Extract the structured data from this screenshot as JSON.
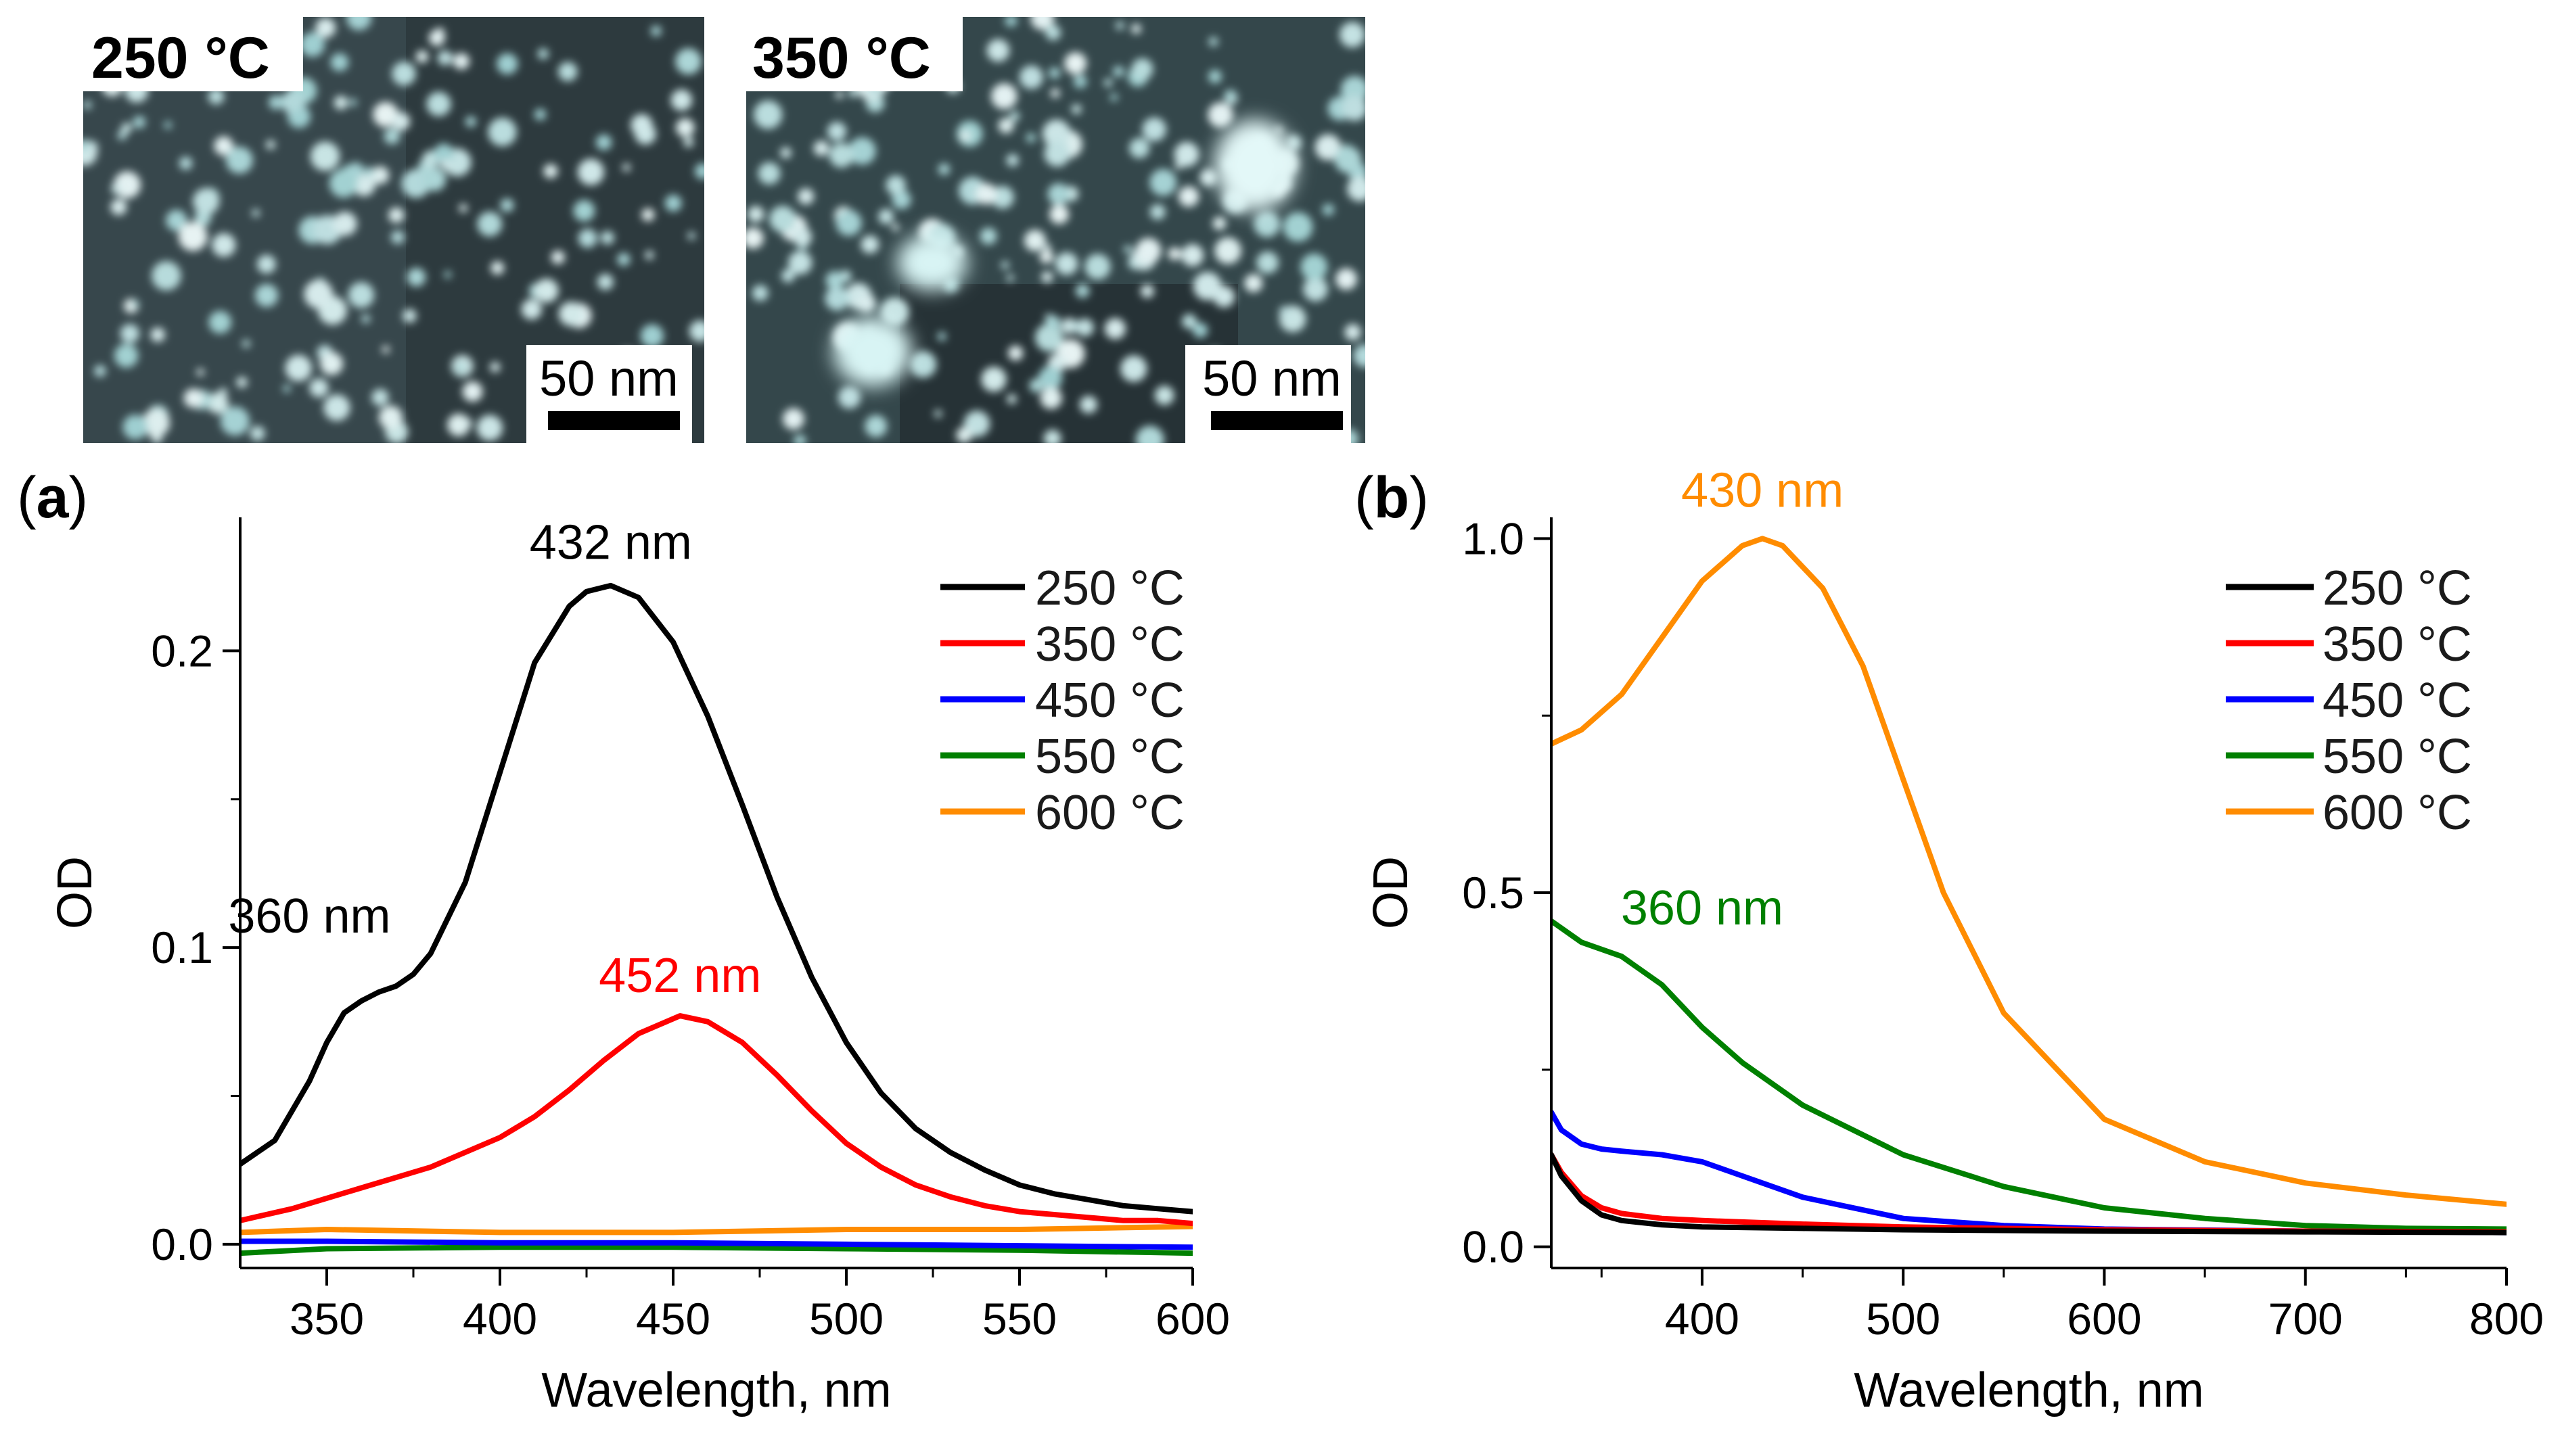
{
  "micrographs": [
    {
      "label": "250 °C",
      "scale_bar": "50 nm"
    },
    {
      "label": "350 °C",
      "scale_bar": "50 nm"
    }
  ],
  "chart_data": [
    {
      "type": "line",
      "panel": "(a)",
      "panel_letter": "a",
      "xlabel": "Wavelength, nm",
      "ylabel": "OD",
      "xlim": [
        325,
        600
      ],
      "ylim": [
        -0.008,
        0.245
      ],
      "xticks": [
        350,
        400,
        450,
        500,
        550,
        600
      ],
      "yticks": [
        0.0,
        0.1,
        0.2
      ],
      "ytick_labels": [
        "0.0",
        "0.1",
        "0.2"
      ],
      "legend_position": "top-right",
      "series": [
        {
          "name": "250 °C",
          "color": "#000000",
          "x": [
            325,
            335,
            345,
            350,
            355,
            360,
            365,
            370,
            375,
            380,
            390,
            400,
            410,
            420,
            425,
            432,
            440,
            450,
            460,
            470,
            480,
            490,
            500,
            510,
            520,
            530,
            540,
            550,
            560,
            570,
            580,
            590,
            600
          ],
          "y": [
            0.027,
            0.035,
            0.055,
            0.068,
            0.078,
            0.082,
            0.085,
            0.087,
            0.091,
            0.098,
            0.122,
            0.159,
            0.196,
            0.215,
            0.22,
            0.222,
            0.218,
            0.203,
            0.178,
            0.148,
            0.117,
            0.09,
            0.068,
            0.051,
            0.039,
            0.031,
            0.025,
            0.02,
            0.017,
            0.015,
            0.013,
            0.012,
            0.011
          ]
        },
        {
          "name": "350 °C",
          "color": "#ff0000",
          "x": [
            325,
            340,
            360,
            380,
            400,
            410,
            420,
            430,
            440,
            452,
            460,
            470,
            480,
            490,
            500,
            510,
            520,
            530,
            540,
            550,
            560,
            570,
            580,
            590,
            600
          ],
          "y": [
            0.008,
            0.012,
            0.019,
            0.026,
            0.036,
            0.043,
            0.052,
            0.062,
            0.071,
            0.077,
            0.075,
            0.068,
            0.057,
            0.045,
            0.034,
            0.026,
            0.02,
            0.016,
            0.013,
            0.011,
            0.01,
            0.009,
            0.008,
            0.008,
            0.007
          ]
        },
        {
          "name": "450 °C",
          "color": "#0000ff",
          "x": [
            325,
            350,
            400,
            450,
            500,
            550,
            600
          ],
          "y": [
            0.001,
            0.001,
            0.0005,
            0.0005,
            0.0,
            -0.0005,
            -0.001
          ]
        },
        {
          "name": "550 °C",
          "color": "#008000",
          "x": [
            325,
            350,
            400,
            450,
            500,
            550,
            600
          ],
          "y": [
            -0.003,
            -0.0015,
            -0.001,
            -0.001,
            -0.0015,
            -0.002,
            -0.003
          ]
        },
        {
          "name": "600 °C",
          "color": "#ff8c00",
          "x": [
            325,
            350,
            400,
            450,
            500,
            550,
            600
          ],
          "y": [
            0.004,
            0.005,
            0.004,
            0.004,
            0.005,
            0.005,
            0.006
          ]
        }
      ],
      "annotations": [
        {
          "text": "432 nm",
          "color": "#000000",
          "x": 432,
          "y": 0.231
        },
        {
          "text": "360 nm",
          "color": "#000000",
          "x": 345,
          "y": 0.105
        },
        {
          "text": "452 nm",
          "color": "#ff0000",
          "x": 452,
          "y": 0.085
        }
      ]
    },
    {
      "type": "line",
      "panel": "(b)",
      "panel_letter": "b",
      "xlabel": "Wavelength, nm",
      "ylabel": "OD",
      "xlim": [
        325,
        800
      ],
      "ylim": [
        -0.03,
        1.03
      ],
      "xticks": [
        400,
        500,
        600,
        700,
        800
      ],
      "yticks": [
        0.0,
        0.5,
        1.0
      ],
      "ytick_labels": [
        "0.0",
        "0.5",
        "1.0"
      ],
      "legend_position": "top-right",
      "series": [
        {
          "name": "250 °C",
          "color": "#000000",
          "x": [
            325,
            330,
            340,
            350,
            360,
            380,
            400,
            450,
            500,
            600,
            700,
            800
          ],
          "y": [
            0.13,
            0.1,
            0.065,
            0.045,
            0.037,
            0.031,
            0.028,
            0.026,
            0.024,
            0.022,
            0.021,
            0.02
          ]
        },
        {
          "name": "350 °C",
          "color": "#ff0000",
          "x": [
            325,
            330,
            340,
            350,
            360,
            380,
            400,
            450,
            500,
            600,
            700,
            800
          ],
          "y": [
            0.13,
            0.105,
            0.072,
            0.055,
            0.047,
            0.04,
            0.037,
            0.032,
            0.028,
            0.024,
            0.022,
            0.021
          ]
        },
        {
          "name": "450 °C",
          "color": "#0000ff",
          "x": [
            325,
            330,
            340,
            350,
            360,
            380,
            400,
            420,
            450,
            500,
            550,
            600,
            700,
            800
          ],
          "y": [
            0.19,
            0.165,
            0.145,
            0.138,
            0.135,
            0.13,
            0.12,
            0.1,
            0.07,
            0.04,
            0.03,
            0.025,
            0.022,
            0.02
          ]
        },
        {
          "name": "550 °C",
          "color": "#008000",
          "x": [
            325,
            340,
            360,
            380,
            400,
            420,
            450,
            500,
            550,
            600,
            650,
            700,
            750,
            800
          ],
          "y": [
            0.46,
            0.43,
            0.41,
            0.37,
            0.31,
            0.26,
            0.2,
            0.13,
            0.085,
            0.055,
            0.04,
            0.03,
            0.026,
            0.025
          ]
        },
        {
          "name": "600 °C",
          "color": "#ff8c00",
          "x": [
            325,
            340,
            360,
            380,
            400,
            420,
            430,
            440,
            460,
            480,
            500,
            520,
            550,
            600,
            650,
            700,
            750,
            800
          ],
          "y": [
            0.71,
            0.73,
            0.78,
            0.86,
            0.94,
            0.99,
            1.0,
            0.99,
            0.93,
            0.82,
            0.66,
            0.5,
            0.33,
            0.18,
            0.12,
            0.09,
            0.073,
            0.06
          ]
        }
      ],
      "annotations": [
        {
          "text": "430 nm",
          "color": "#ff8c00",
          "x": 430,
          "y": 1.045
        },
        {
          "text": "360 nm",
          "color": "#008000",
          "x": 400,
          "y": 0.455
        }
      ]
    }
  ]
}
